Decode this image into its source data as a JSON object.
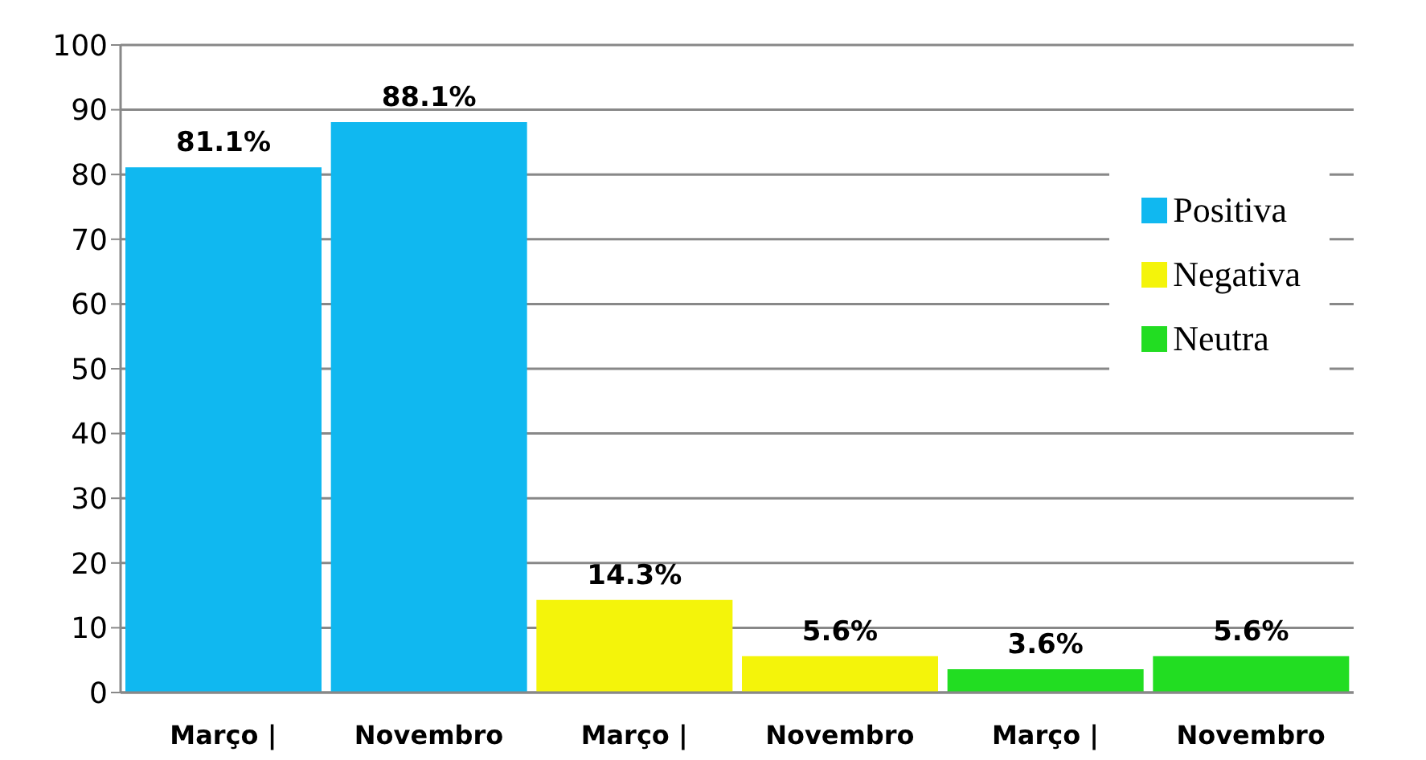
{
  "chart_data": {
    "type": "bar",
    "categories": [
      "Março |",
      "Novembro",
      "Março |",
      "Novembro",
      "Março |",
      "Novembro"
    ],
    "series": [
      {
        "name": "Positiva",
        "color": "#10b8f0",
        "values": [
          81.1,
          88.1,
          null,
          null,
          null,
          null
        ],
        "value_labels": [
          "81.1%",
          "88.1%",
          null,
          null,
          null,
          null
        ]
      },
      {
        "name": "Negativa",
        "color": "#f4f40a",
        "values": [
          null,
          null,
          14.3,
          5.6,
          null,
          null
        ],
        "value_labels": [
          null,
          null,
          "14.3%",
          "5.6%",
          null,
          null
        ]
      },
      {
        "name": "Neutra",
        "color": "#22dd22",
        "values": [
          null,
          null,
          null,
          null,
          3.6,
          5.6
        ],
        "value_labels": [
          null,
          null,
          null,
          null,
          "3.6%",
          "5.6%"
        ]
      }
    ],
    "stacked": true,
    "ylim": [
      0,
      100
    ],
    "yticks": [
      0,
      10,
      20,
      30,
      40,
      50,
      60,
      70,
      80,
      90,
      100
    ],
    "grid": "y",
    "legend": "right"
  }
}
